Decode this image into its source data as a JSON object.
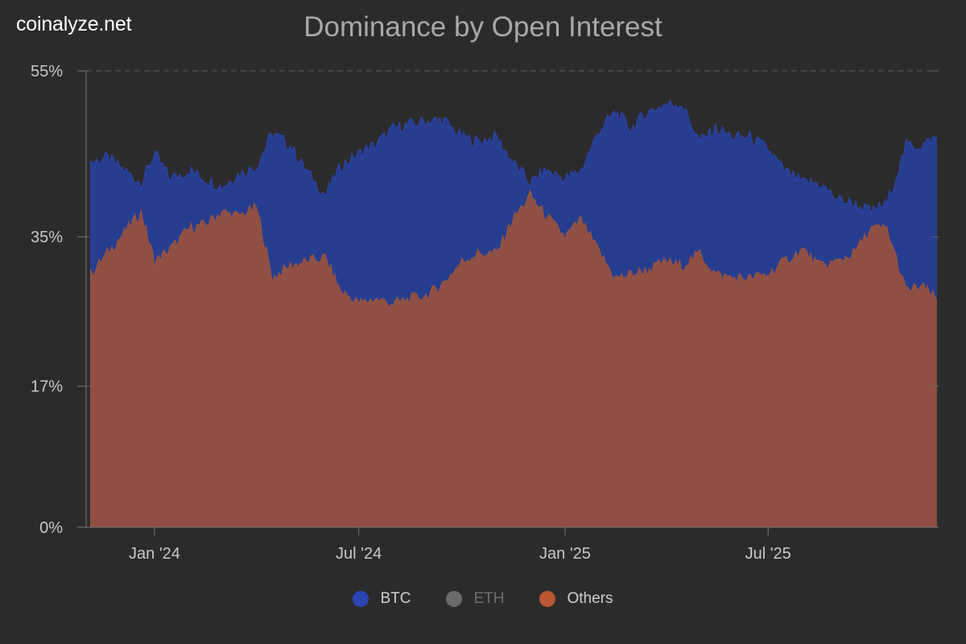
{
  "brand": "coinalyze.net",
  "chart_data": {
    "type": "area",
    "title": "Dominance by Open Interest",
    "xlabel": "",
    "ylabel": "",
    "ylim": [
      0,
      55
    ],
    "y_ticks": [
      {
        "value": 0,
        "label": "0%"
      },
      {
        "value": 17,
        "label": "17%"
      },
      {
        "value": 35,
        "label": "35%"
      },
      {
        "value": 55,
        "label": "55%"
      }
    ],
    "x_range": [
      "2023-11-01",
      "2025-11-30"
    ],
    "x_ticks": [
      {
        "date": "2024-01-01",
        "label": "Jan '24"
      },
      {
        "date": "2024-07-01",
        "label": "Jul '24"
      },
      {
        "date": "2025-01-01",
        "label": "Jan '25"
      },
      {
        "date": "2025-07-01",
        "label": "Jul '25"
      }
    ],
    "stacking": "BTC area drawn to its value; Others area drawn in front",
    "series": [
      {
        "name": "BTC",
        "color": "#2c44b4",
        "points": [
          [
            "2023-11-05",
            44
          ],
          [
            "2023-11-20",
            44.5
          ],
          [
            "2023-12-05",
            43
          ],
          [
            "2023-12-20",
            41.5
          ],
          [
            "2024-01-01",
            45
          ],
          [
            "2024-01-15",
            42
          ],
          [
            "2024-02-01",
            43
          ],
          [
            "2024-02-15",
            42
          ],
          [
            "2024-03-01",
            41
          ],
          [
            "2024-03-15",
            42.5
          ],
          [
            "2024-04-01",
            43.5
          ],
          [
            "2024-04-15",
            47.5
          ],
          [
            "2024-05-01",
            46
          ],
          [
            "2024-05-15",
            43
          ],
          [
            "2024-06-01",
            40
          ],
          [
            "2024-06-15",
            43.5
          ],
          [
            "2024-07-01",
            45
          ],
          [
            "2024-07-15",
            46
          ],
          [
            "2024-08-01",
            48
          ],
          [
            "2024-08-15",
            48.5
          ],
          [
            "2024-09-01",
            49
          ],
          [
            "2024-09-15",
            49
          ],
          [
            "2024-10-01",
            47
          ],
          [
            "2024-10-15",
            46.5
          ],
          [
            "2024-11-01",
            47
          ],
          [
            "2024-11-15",
            44
          ],
          [
            "2024-12-01",
            41.5
          ],
          [
            "2024-12-15",
            43
          ],
          [
            "2025-01-01",
            42
          ],
          [
            "2025-01-15",
            43
          ],
          [
            "2025-02-01",
            48
          ],
          [
            "2025-02-15",
            50
          ],
          [
            "2025-03-01",
            48
          ],
          [
            "2025-03-15",
            50
          ],
          [
            "2025-04-01",
            51
          ],
          [
            "2025-04-15",
            51
          ],
          [
            "2025-05-01",
            46.5
          ],
          [
            "2025-05-15",
            48
          ],
          [
            "2025-06-01",
            47
          ],
          [
            "2025-06-15",
            47
          ],
          [
            "2025-07-01",
            45.5
          ],
          [
            "2025-07-15",
            43
          ],
          [
            "2025-08-01",
            41.5
          ],
          [
            "2025-08-15",
            41.5
          ],
          [
            "2025-09-01",
            39.5
          ],
          [
            "2025-09-15",
            39
          ],
          [
            "2025-10-01",
            38
          ],
          [
            "2025-10-15",
            39
          ],
          [
            "2025-11-01",
            46
          ],
          [
            "2025-11-15",
            46
          ],
          [
            "2025-11-28",
            47
          ]
        ]
      },
      {
        "name": "ETH",
        "color": "#6b6b6b",
        "points": []
      },
      {
        "name": "Others",
        "color": "#bd5630",
        "points": [
          [
            "2023-11-05",
            30.5
          ],
          [
            "2023-11-20",
            33
          ],
          [
            "2023-12-05",
            35.5
          ],
          [
            "2023-12-20",
            38
          ],
          [
            "2024-01-01",
            32
          ],
          [
            "2024-01-15",
            33.5
          ],
          [
            "2024-02-01",
            36
          ],
          [
            "2024-02-15",
            36.5
          ],
          [
            "2024-03-01",
            38
          ],
          [
            "2024-03-15",
            37.5
          ],
          [
            "2024-04-01",
            38.5
          ],
          [
            "2024-04-15",
            30
          ],
          [
            "2024-05-01",
            31.5
          ],
          [
            "2024-05-15",
            32
          ],
          [
            "2024-06-01",
            32.5
          ],
          [
            "2024-06-15",
            28.5
          ],
          [
            "2024-07-01",
            27
          ],
          [
            "2024-07-15",
            27.5
          ],
          [
            "2024-08-01",
            27
          ],
          [
            "2024-08-15",
            27.5
          ],
          [
            "2024-09-01",
            28
          ],
          [
            "2024-09-15",
            29.5
          ],
          [
            "2024-10-01",
            32
          ],
          [
            "2024-10-15",
            33
          ],
          [
            "2024-11-01",
            33
          ],
          [
            "2024-11-15",
            37
          ],
          [
            "2024-12-01",
            40
          ],
          [
            "2024-12-15",
            37.5
          ],
          [
            "2025-01-01",
            35
          ],
          [
            "2025-01-15",
            37
          ],
          [
            "2025-02-01",
            33
          ],
          [
            "2025-02-15",
            30
          ],
          [
            "2025-03-01",
            30.5
          ],
          [
            "2025-03-15",
            31
          ],
          [
            "2025-04-01",
            32
          ],
          [
            "2025-04-15",
            31.5
          ],
          [
            "2025-05-01",
            33
          ],
          [
            "2025-05-15",
            30.5
          ],
          [
            "2025-06-01",
            30
          ],
          [
            "2025-06-15",
            30
          ],
          [
            "2025-07-01",
            30.5
          ],
          [
            "2025-07-15",
            32
          ],
          [
            "2025-08-01",
            33.5
          ],
          [
            "2025-08-15",
            31.5
          ],
          [
            "2025-09-01",
            32
          ],
          [
            "2025-09-15",
            33
          ],
          [
            "2025-10-01",
            36
          ],
          [
            "2025-10-15",
            36
          ],
          [
            "2025-11-01",
            28.5
          ],
          [
            "2025-11-15",
            29
          ],
          [
            "2025-11-28",
            27.5
          ]
        ]
      }
    ],
    "legend": [
      {
        "name": "BTC",
        "color": "#2c44b4",
        "active": true
      },
      {
        "name": "ETH",
        "color": "#6b6b6b",
        "active": false
      },
      {
        "name": "Others",
        "color": "#bd5630",
        "active": true
      }
    ],
    "legend_position": "bottom-center",
    "grid": true
  }
}
